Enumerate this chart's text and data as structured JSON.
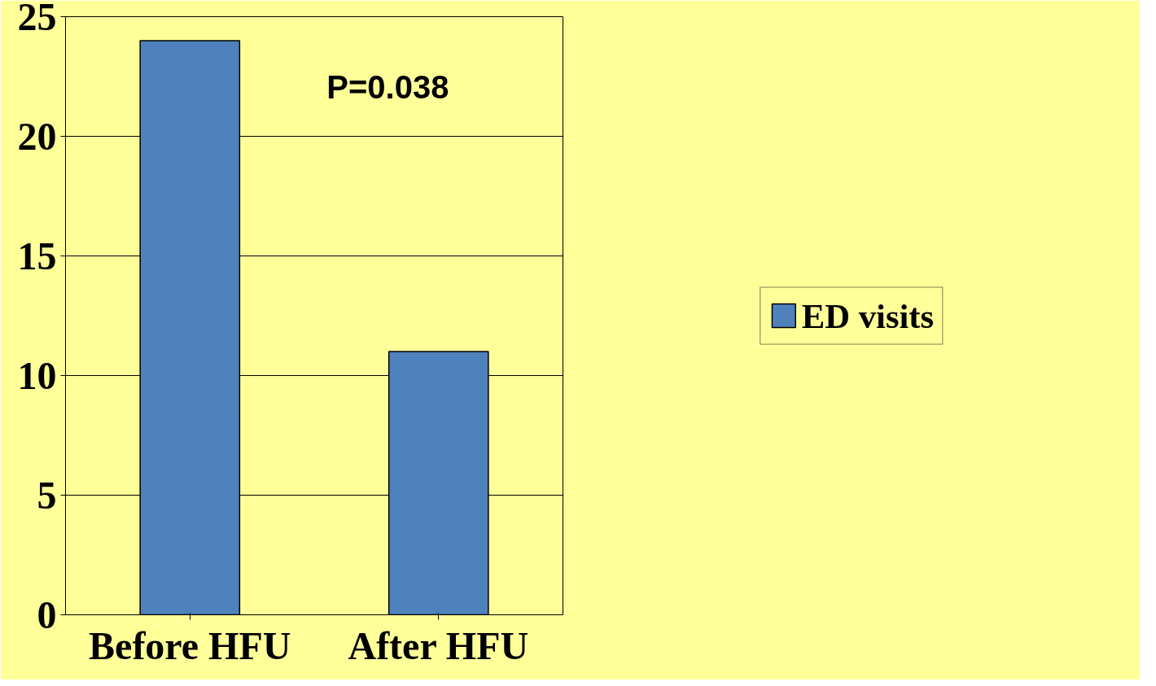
{
  "chart_data": {
    "type": "bar",
    "categories": [
      "Before HFU",
      "After HFU"
    ],
    "series": [
      {
        "name": "ED visits",
        "color": "#4f81bd",
        "values": [
          24,
          11
        ]
      }
    ],
    "ylim": [
      0,
      25
    ],
    "yticks": [
      0,
      5,
      10,
      15,
      20,
      25
    ],
    "grid": "y",
    "legend": "right",
    "annotations": [
      {
        "text": "P=0.038"
      }
    ]
  }
}
